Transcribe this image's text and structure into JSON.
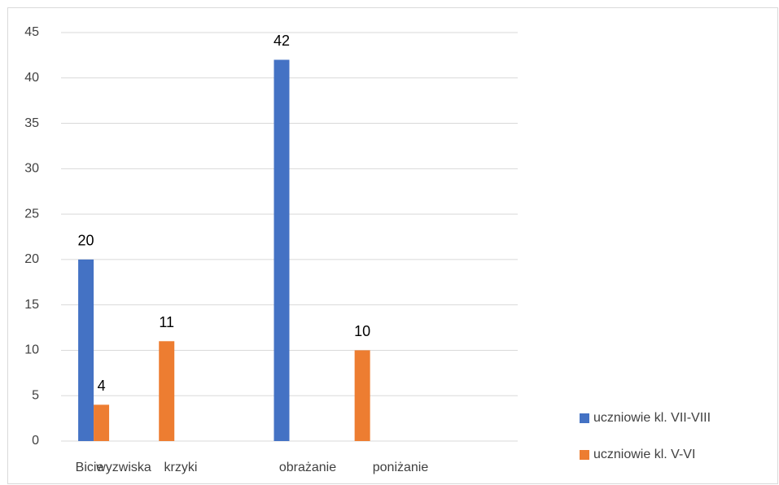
{
  "chart_data": {
    "type": "bar",
    "categories": [
      "Bicie",
      "wyzwiska",
      "krzyki",
      "obrażanie",
      "poniżanie",
      null,
      null
    ],
    "series": [
      {
        "name": "uczniowie kl. VII-VIII",
        "color": "#4472c4",
        "values": [
          20,
          null,
          null,
          42,
          null,
          null,
          null
        ]
      },
      {
        "name": "uczniowie kl. V-VI",
        "color": "#ed7d31",
        "values": [
          4,
          11,
          null,
          null,
          10,
          null,
          null
        ]
      }
    ],
    "ylim": [
      0,
      45
    ],
    "yticks": [
      0,
      5,
      10,
      15,
      20,
      25,
      30,
      35,
      40,
      45
    ],
    "grid": true,
    "legend": "right"
  }
}
